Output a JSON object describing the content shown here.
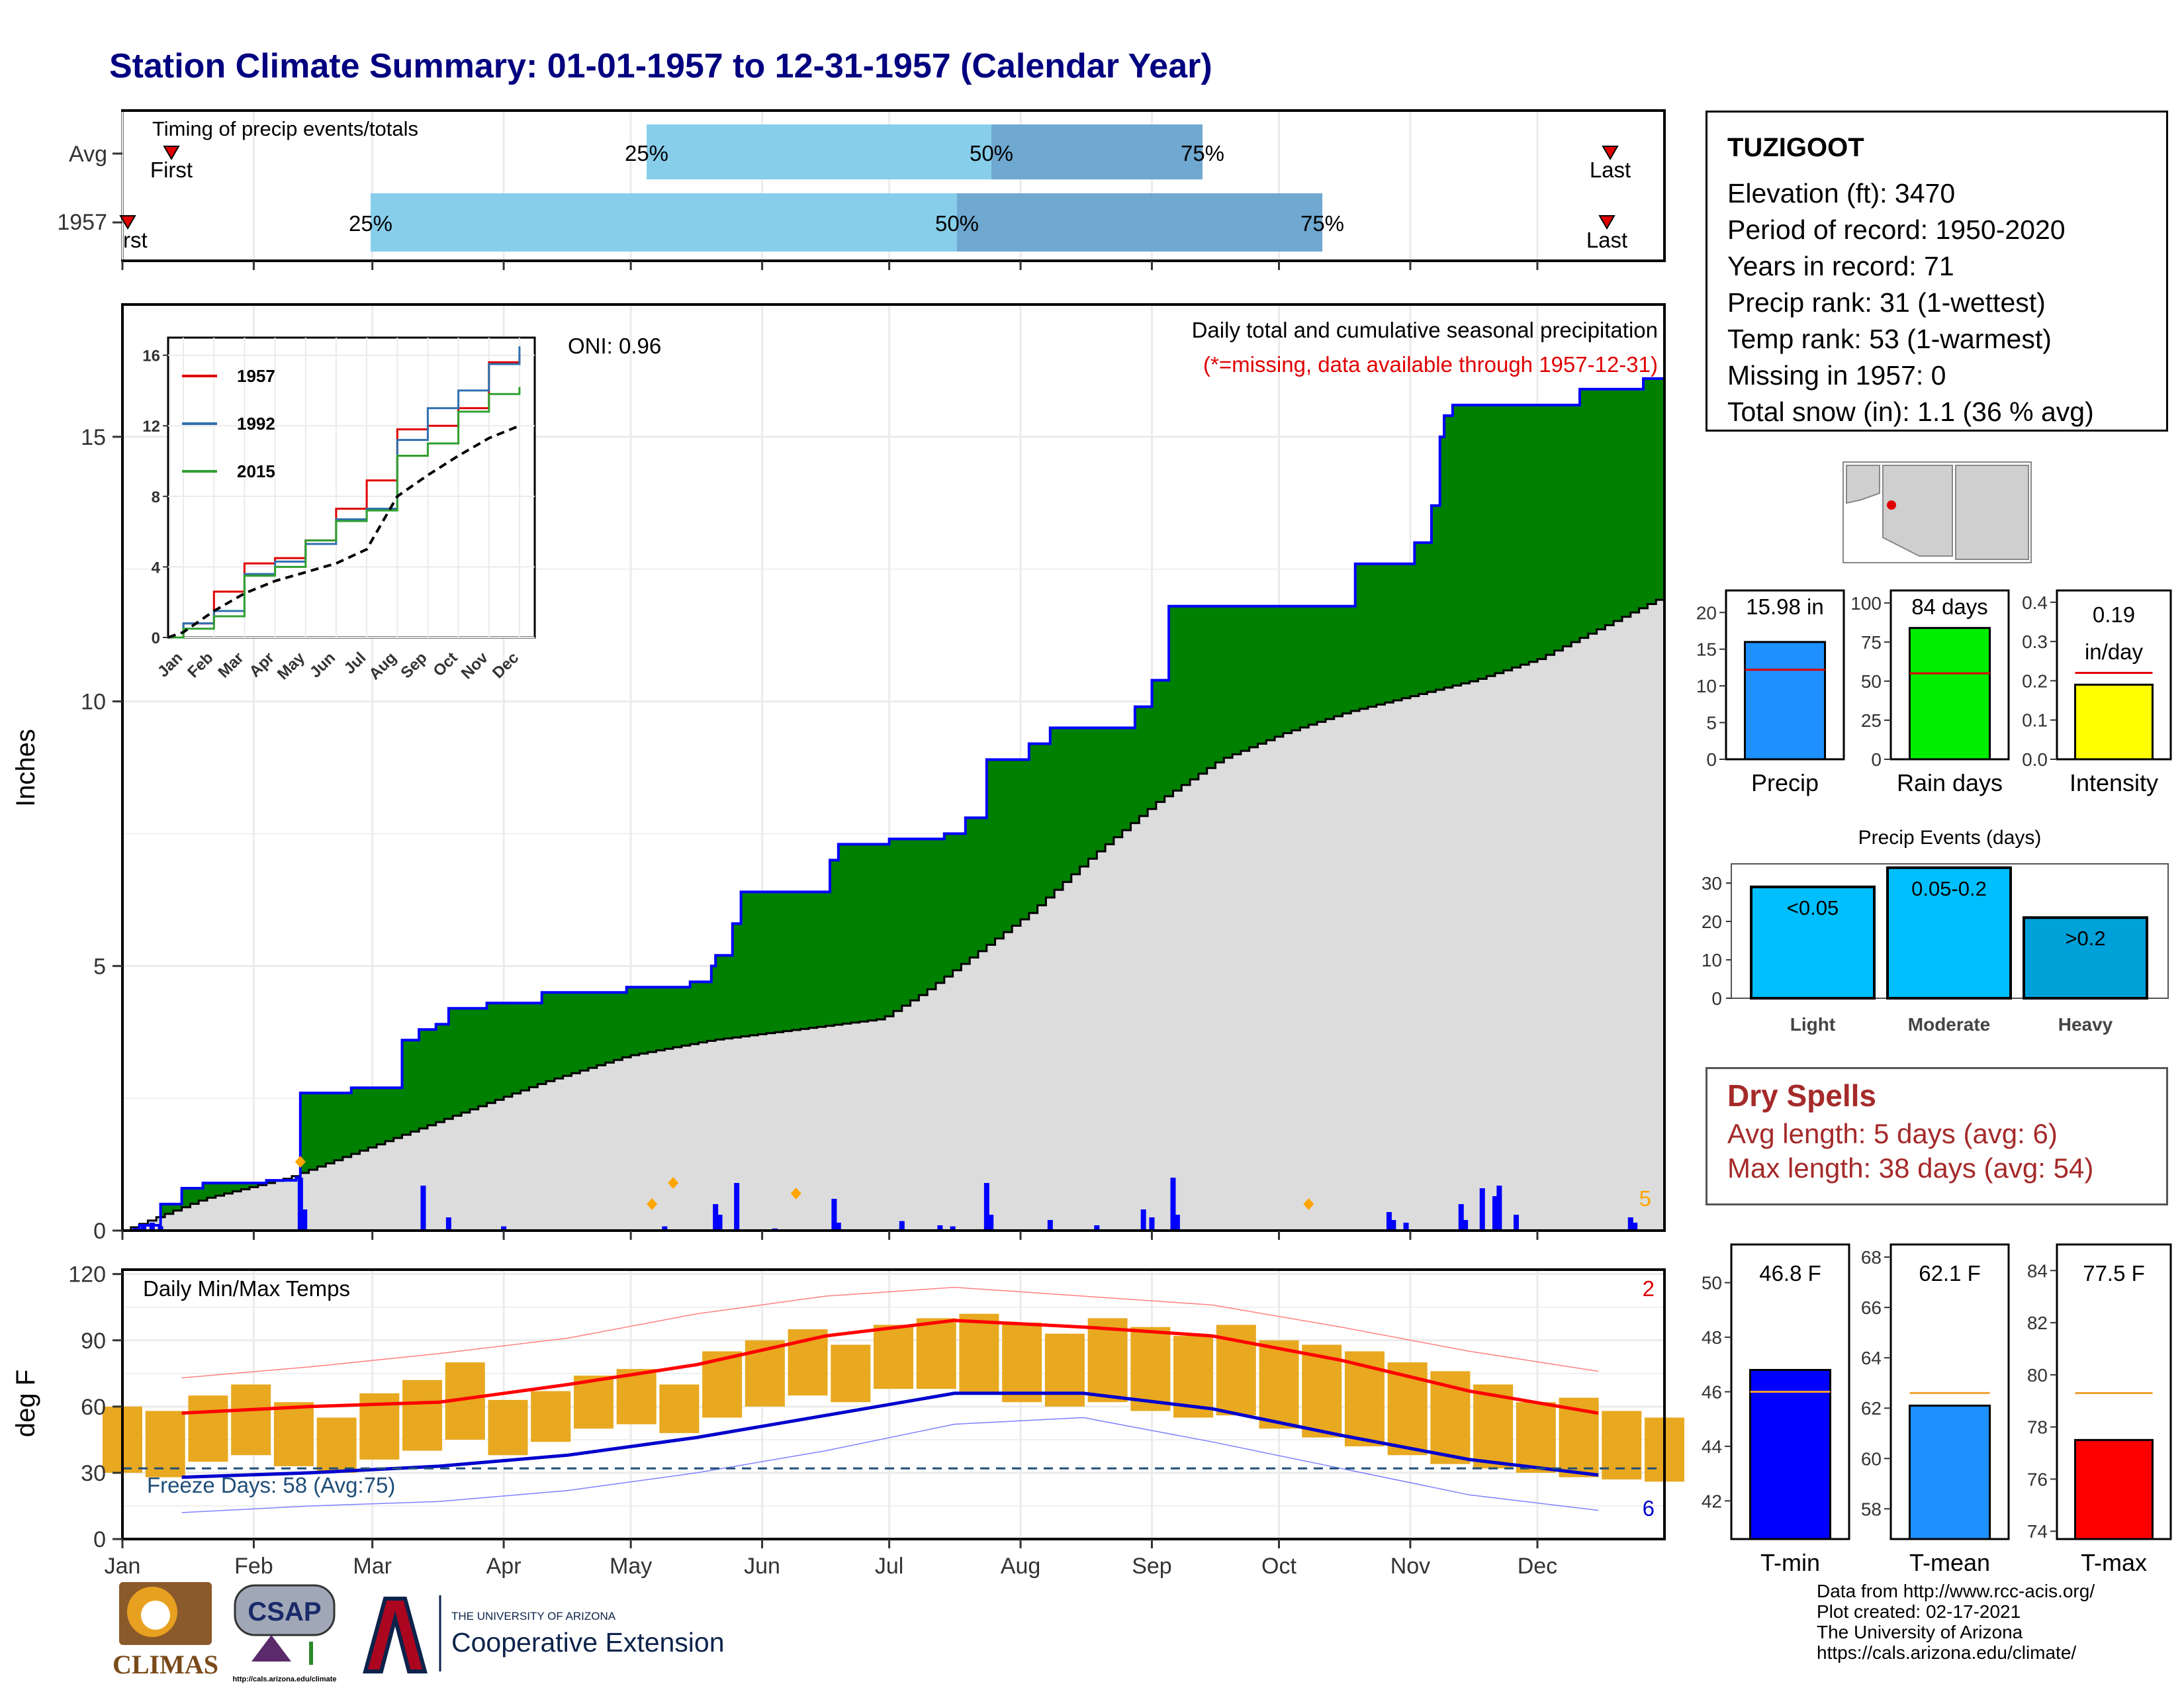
{
  "title": "Station Climate Summary: 01-01-1957 to 12-31-1957 (Calendar Year)",
  "station": {
    "name": "TUZIGOOT",
    "lines": [
      "Elevation (ft): 3470",
      "Period of record: 1950-2020",
      "Years in record: 71",
      "Precip rank: 31 (1-wettest)",
      "Temp rank: 53 (1-warmest)",
      "Missing in 1957: 0",
      "Total snow (in): 1.1 (36 % avg)"
    ]
  },
  "colors": {
    "title": "#000080",
    "cumulative_fill": "#008000",
    "cumulative_line": "#0000ff",
    "average_fill": "#dcdcdc",
    "daily_bar": "#0000ff",
    "marker": "#ffa500",
    "timing_light": "#87ceeb",
    "timing_dark": "#6fa8d0",
    "tmax_line": "#ff0000",
    "tmin_line": "#0000cd",
    "temp_bar": "#e8a820",
    "dry_spells": "#a52a2a"
  },
  "timing": {
    "label": "Timing of precip events/totals",
    "rows": [
      "Avg",
      "1957"
    ],
    "avg_markers": {
      "first": "First",
      "last": "Last",
      "p25": "25%",
      "p50": "50%",
      "p75": "75%"
    },
    "year_markers": {
      "first": "rst",
      "last": "Last",
      "p25": "25%",
      "p50": "50%",
      "p75": "75%"
    }
  },
  "precip_panel": {
    "ylabel": "Inches",
    "heading": "Daily total and cumulative seasonal precipitation",
    "missing_note": "(*=missing, data available through 1957-12-31)",
    "oni": "ONI: 0.96",
    "corner_count": "5",
    "yticks": [
      "0",
      "5",
      "10",
      "15"
    ]
  },
  "inset": {
    "yticks": [
      "0",
      "4",
      "8",
      "12",
      "16"
    ],
    "months": [
      "Jan",
      "Feb",
      "Mar",
      "Apr",
      "May",
      "Jun",
      "Jul",
      "Aug",
      "Sep",
      "Oct",
      "Nov",
      "Dec"
    ],
    "legend": [
      "1957",
      "1992",
      "2015"
    ]
  },
  "temp_panel": {
    "ylabel": "deg F",
    "heading": "Daily Min/Max Temps",
    "freeze": "Freeze Days: 58 (Avg:75)",
    "count_max": "2",
    "count_min": "6",
    "yticks": [
      "0",
      "30",
      "60",
      "90",
      "120"
    ],
    "months": [
      "Jan",
      "Feb",
      "Mar",
      "Apr",
      "May",
      "Jun",
      "Jul",
      "Aug",
      "Sep",
      "Oct",
      "Nov",
      "Dec"
    ]
  },
  "summary_bars": {
    "precip": {
      "label": "Precip",
      "value_text": "15.98 in",
      "value": 15.98,
      "avg": 12.2,
      "yticks": [
        "0",
        "5",
        "10",
        "15",
        "20"
      ]
    },
    "rain_days": {
      "label": "Rain days",
      "value_text": "84 days",
      "value": 84,
      "avg": 55,
      "yticks": [
        "0",
        "25",
        "50",
        "75",
        "100"
      ]
    },
    "intensity": {
      "label": "Intensity",
      "value_text_1": "0.19",
      "value_text_2": "in/day",
      "value": 0.19,
      "avg": 0.22,
      "yticks": [
        "0.0",
        "0.1",
        "0.2",
        "0.3",
        "0.4"
      ]
    }
  },
  "precip_events": {
    "title": "Precip Events (days)",
    "yticks": [
      "0",
      "10",
      "20",
      "30"
    ],
    "bars": [
      {
        "label": "Light",
        "inner": "<0.05",
        "value": 29
      },
      {
        "label": "Moderate",
        "inner": "0.05-0.2",
        "value": 34
      },
      {
        "label": "Heavy",
        "inner": ">0.2",
        "value": 21
      }
    ]
  },
  "dry_spells": {
    "title": "Dry Spells",
    "avg_line": "Avg length: 5 days (avg: 6)",
    "max_line": "Max length: 38 days (avg: 54)"
  },
  "temp_bars": {
    "tmin": {
      "label": "T-min",
      "value_text": "46.8 F",
      "value": 46.8,
      "avg": 46.0,
      "yticks": [
        "42",
        "44",
        "46",
        "48",
        "50"
      ]
    },
    "tmean": {
      "label": "T-mean",
      "value_text": "62.1 F",
      "value": 62.1,
      "avg": 62.6,
      "yticks": [
        "58",
        "60",
        "62",
        "64",
        "66",
        "68"
      ]
    },
    "tmax": {
      "label": "T-max",
      "value_text": "77.5 F",
      "value": 77.5,
      "avg": 79.3,
      "yticks": [
        "74",
        "76",
        "78",
        "80",
        "82",
        "84"
      ]
    }
  },
  "logos": {
    "climas": "CLIMAS",
    "csap": "CSAP",
    "csap_url": "http://cals.arizona.edu/climate",
    "ua_small": "THE UNIVERSITY OF ARIZONA",
    "ua_big": "Cooperative Extension"
  },
  "credits": [
    "Data from http://www.rcc-acis.org/",
    "Plot created: 02-17-2021",
    "The University of Arizona",
    "https://cals.arizona.edu/climate/"
  ],
  "chart_data": [
    {
      "type": "area",
      "title": "Daily total and cumulative seasonal precipitation",
      "ylabel": "Inches",
      "ylim": [
        0,
        17.5
      ],
      "grid": true,
      "cumulative_1957": [
        [
          1,
          0
        ],
        [
          5,
          0.1
        ],
        [
          10,
          0.5
        ],
        [
          15,
          0.8
        ],
        [
          20,
          0.9
        ],
        [
          35,
          0.95
        ],
        [
          42,
          1.0
        ],
        [
          43,
          2.6
        ],
        [
          55,
          2.7
        ],
        [
          65,
          2.7
        ],
        [
          67,
          3.6
        ],
        [
          71,
          3.8
        ],
        [
          75,
          3.9
        ],
        [
          78,
          4.2
        ],
        [
          87,
          4.3
        ],
        [
          100,
          4.5
        ],
        [
          120,
          4.6
        ],
        [
          135,
          4.7
        ],
        [
          140,
          5.0
        ],
        [
          141,
          5.2
        ],
        [
          145,
          5.8
        ],
        [
          147,
          6.4
        ],
        [
          165,
          6.4
        ],
        [
          168,
          7.0
        ],
        [
          170,
          7.3
        ],
        [
          178,
          7.3
        ],
        [
          182,
          7.4
        ],
        [
          190,
          7.4
        ],
        [
          195,
          7.5
        ],
        [
          200,
          7.8
        ],
        [
          205,
          8.9
        ],
        [
          212,
          8.9
        ],
        [
          215,
          9.2
        ],
        [
          220,
          9.5
        ],
        [
          238,
          9.5
        ],
        [
          240,
          9.9
        ],
        [
          244,
          10.4
        ],
        [
          248,
          11.8
        ],
        [
          290,
          11.8
        ],
        [
          292,
          12.6
        ],
        [
          300,
          12.6
        ],
        [
          306,
          13.0
        ],
        [
          310,
          13.7
        ],
        [
          312,
          15.0
        ],
        [
          313,
          15.4
        ],
        [
          315,
          15.6
        ],
        [
          345,
          15.9
        ],
        [
          358,
          15.9
        ],
        [
          360,
          16.1
        ],
        [
          365,
          16.1
        ]
      ],
      "average_cumulative": [
        [
          1,
          0
        ],
        [
          20,
          0.6
        ],
        [
          40,
          1.0
        ],
        [
          60,
          1.6
        ],
        [
          80,
          2.2
        ],
        [
          100,
          2.8
        ],
        [
          120,
          3.3
        ],
        [
          140,
          3.6
        ],
        [
          160,
          3.8
        ],
        [
          180,
          4.0
        ],
        [
          190,
          4.5
        ],
        [
          200,
          5.1
        ],
        [
          215,
          6.0
        ],
        [
          230,
          7.1
        ],
        [
          245,
          8.1
        ],
        [
          260,
          8.9
        ],
        [
          275,
          9.4
        ],
        [
          290,
          9.8
        ],
        [
          305,
          10.1
        ],
        [
          320,
          10.4
        ],
        [
          335,
          10.8
        ],
        [
          350,
          11.4
        ],
        [
          365,
          12.0
        ]
      ],
      "daily_precip": [
        [
          4,
          0.05
        ],
        [
          6,
          0.1
        ],
        [
          8,
          0.15
        ],
        [
          10,
          0.08
        ],
        [
          43,
          1.0
        ],
        [
          44,
          0.4
        ],
        [
          72,
          0.85
        ],
        [
          78,
          0.25
        ],
        [
          91,
          0.08
        ],
        [
          129,
          0.08
        ],
        [
          141,
          0.5
        ],
        [
          142,
          0.3
        ],
        [
          146,
          0.9
        ],
        [
          155,
          0.04
        ],
        [
          169,
          0.6
        ],
        [
          170,
          0.15
        ],
        [
          185,
          0.18
        ],
        [
          194,
          0.1
        ],
        [
          197,
          0.08
        ],
        [
          205,
          0.9
        ],
        [
          206,
          0.3
        ],
        [
          220,
          0.2
        ],
        [
          231,
          0.1
        ],
        [
          242,
          0.4
        ],
        [
          244,
          0.25
        ],
        [
          249,
          1.0
        ],
        [
          250,
          0.3
        ],
        [
          300,
          0.35
        ],
        [
          301,
          0.2
        ],
        [
          304,
          0.15
        ],
        [
          317,
          0.5
        ],
        [
          318,
          0.2
        ],
        [
          322,
          0.8
        ],
        [
          325,
          0.65
        ],
        [
          326,
          0.85
        ],
        [
          330,
          0.3
        ],
        [
          357,
          0.25
        ],
        [
          358,
          0.15
        ]
      ],
      "markers": [
        [
          43,
          1.3
        ],
        [
          126,
          0.5
        ],
        [
          131,
          0.9
        ],
        [
          160,
          0.7
        ],
        [
          281,
          0.5
        ]
      ]
    },
    {
      "type": "line",
      "title": "",
      "x": [
        "Jan",
        "Feb",
        "Mar",
        "Apr",
        "May",
        "Jun",
        "Jul",
        "Aug",
        "Sep",
        "Oct",
        "Nov",
        "Dec"
      ],
      "ylim": [
        0,
        17
      ],
      "series": [
        {
          "name": "1957",
          "values": [
            0.8,
            2.6,
            4.2,
            4.5,
            5.5,
            7.3,
            8.9,
            11.8,
            12.0,
            13.0,
            15.6,
            16.0
          ]
        },
        {
          "name": "1992",
          "values": [
            0.8,
            1.5,
            3.6,
            4.3,
            5.3,
            6.7,
            7.3,
            11.2,
            13.0,
            14.0,
            15.5,
            16.5
          ]
        },
        {
          "name": "2015",
          "values": [
            0.5,
            1.2,
            3.5,
            4.0,
            5.5,
            6.6,
            7.2,
            10.3,
            11.0,
            12.8,
            13.8,
            14.2
          ]
        },
        {
          "name": "",
          "values": [
            0.3,
            1.5,
            2.5,
            3.2,
            3.7,
            4.2,
            5.0,
            8.0,
            9.2,
            10.3,
            11.3,
            12.0
          ]
        }
      ]
    },
    {
      "type": "line",
      "title": "Daily Min/Max Temps",
      "ylabel": "deg F",
      "ylim": [
        0,
        122
      ],
      "x": [
        "Jan",
        "Feb",
        "Mar",
        "Apr",
        "May",
        "Jun",
        "Jul",
        "Aug",
        "Sep",
        "Oct",
        "Nov",
        "Dec"
      ],
      "series": [
        {
          "name": "",
          "values": [
            57,
            60,
            62,
            70,
            79,
            92,
            99,
            96,
            92,
            81,
            67,
            57
          ]
        },
        {
          "name": "",
          "values": [
            28,
            30,
            33,
            38,
            46,
            56,
            66,
            66,
            59,
            47,
            36,
            29
          ]
        },
        {
          "name": "",
          "values": [
            73,
            78,
            84,
            91,
            102,
            110,
            114,
            110,
            106,
            96,
            85,
            76
          ]
        },
        {
          "name": "",
          "values": [
            12,
            15,
            17,
            22,
            30,
            40,
            52,
            55,
            44,
            32,
            20,
            13
          ]
        }
      ],
      "daily_max_1957": [
        60,
        58,
        65,
        70,
        62,
        55,
        66,
        72,
        80,
        63,
        67,
        74,
        77,
        70,
        85,
        90,
        95,
        88,
        97,
        100,
        102,
        98,
        93,
        100,
        96,
        92,
        97,
        90,
        88,
        85,
        80,
        76,
        70,
        62,
        64,
        58,
        55
      ],
      "daily_min_1957": [
        30,
        28,
        35,
        38,
        33,
        30,
        36,
        40,
        45,
        38,
        44,
        50,
        52,
        48,
        55,
        60,
        65,
        62,
        68,
        68,
        66,
        62,
        60,
        62,
        58,
        55,
        56,
        50,
        46,
        42,
        38,
        34,
        32,
        30,
        28,
        27,
        26
      ],
      "freeze_line": 32
    },
    {
      "type": "bar",
      "title": "",
      "categories": [
        "Precip",
        "Rain days",
        "Intensity"
      ],
      "values": [
        15.98,
        84,
        0.19
      ]
    },
    {
      "type": "bar",
      "title": "Precip Events (days)",
      "categories": [
        "Light",
        "Moderate",
        "Heavy"
      ],
      "values": [
        29,
        34,
        21
      ],
      "ylim": [
        0,
        35
      ]
    },
    {
      "type": "bar",
      "title": "",
      "categories": [
        "T-min",
        "T-mean",
        "T-max"
      ],
      "values": [
        46.8,
        62.1,
        77.5
      ]
    }
  ]
}
